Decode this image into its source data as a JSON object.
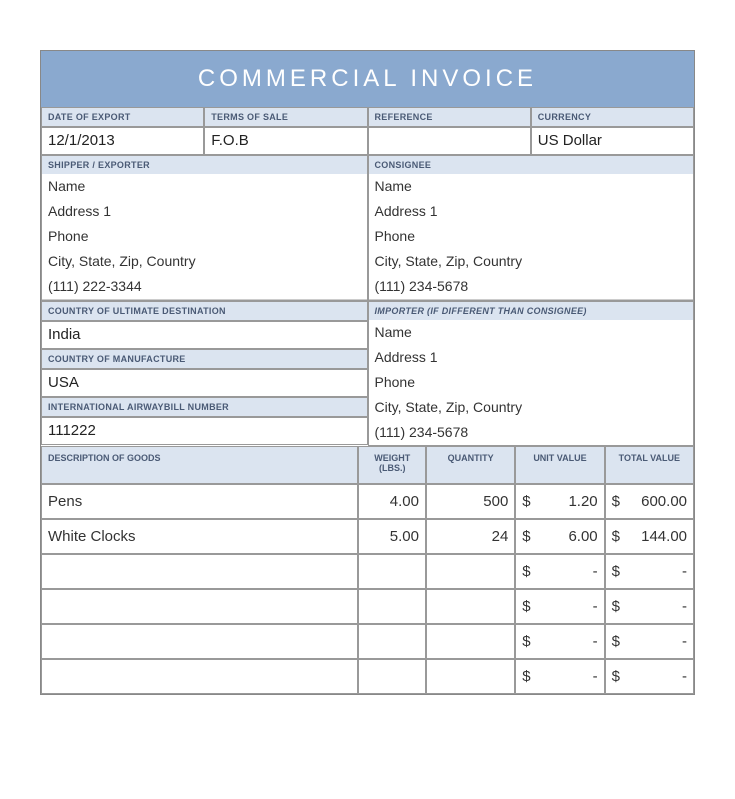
{
  "title": "COMMERCIAL INVOICE",
  "labels": {
    "date_of_export": "DATE OF EXPORT",
    "terms_of_sale": "TERMS OF SALE",
    "reference": "REFERENCE",
    "currency": "CURRENCY",
    "shipper": "SHIPPER / EXPORTER",
    "consignee": "CONSIGNEE",
    "country_dest": "COUNTRY OF ULTIMATE DESTINATION",
    "country_manu": "COUNTRY OF MANUFACTURE",
    "awb": "INTERNATIONAL AIRWAYBILL NUMBER",
    "importer": "IMPORTER (IF DIFFERENT THAN CONSIGNEE)",
    "desc_goods": "DESCRIPTION OF GOODS",
    "weight": "WEIGHT (LBS.)",
    "quantity": "QUANTITY",
    "unit_value": "UNIT VALUE",
    "total_value": "TOTAL VALUE"
  },
  "meta": {
    "date_of_export": "12/1/2013",
    "terms_of_sale": "F.O.B",
    "reference": "",
    "currency": "US Dollar",
    "country_dest": "India",
    "country_manu": "USA",
    "awb": "111222"
  },
  "shipper": {
    "name": "Name",
    "address1": "Address 1",
    "phone_lbl": "Phone",
    "csz": "City, State, Zip, Country",
    "phone": "(111) 222-3344"
  },
  "consignee": {
    "name": "Name",
    "address1": "Address 1",
    "phone_lbl": "Phone",
    "csz": "City, State, Zip, Country",
    "phone": "(111) 234-5678"
  },
  "importer": {
    "name": "Name",
    "address1": "Address 1",
    "phone_lbl": "Phone",
    "csz": "City, State, Zip, Country",
    "phone": "(111) 234-5678"
  },
  "goods": [
    {
      "desc": "Pens",
      "weight": "4.00",
      "qty": "500",
      "unit_sym": "$",
      "unit": "1.20",
      "total_sym": "$",
      "total": "600.00"
    },
    {
      "desc": "White Clocks",
      "weight": "5.00",
      "qty": "24",
      "unit_sym": "$",
      "unit": "6.00",
      "total_sym": "$",
      "total": "144.00"
    },
    {
      "desc": "",
      "weight": "",
      "qty": "",
      "unit_sym": "$",
      "unit": "-",
      "total_sym": "$",
      "total": "-"
    },
    {
      "desc": "",
      "weight": "",
      "qty": "",
      "unit_sym": "$",
      "unit": "-",
      "total_sym": "$",
      "total": "-"
    },
    {
      "desc": "",
      "weight": "",
      "qty": "",
      "unit_sym": "$",
      "unit": "-",
      "total_sym": "$",
      "total": "-"
    },
    {
      "desc": "",
      "weight": "",
      "qty": "",
      "unit_sym": "$",
      "unit": "-",
      "total_sym": "$",
      "total": "-"
    }
  ],
  "colors": {
    "title_bg": "#8aa9cf",
    "header_bg": "#dbe4f0",
    "border": "#999999"
  }
}
